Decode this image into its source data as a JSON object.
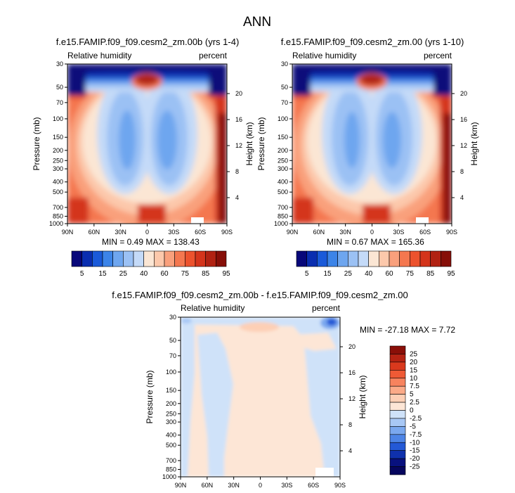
{
  "main_title": "ANN",
  "chart_data": [
    {
      "type": "heatmap",
      "title": "f.e15.FAMIP.f09_f09.cesm2_zm.00b (yrs 1-4)",
      "left_label": "Relative humidity",
      "right_label": "percent",
      "xlabel": "",
      "ylabel": "Pressure (mb)",
      "y2label": "Height (km)",
      "x_ticks": [
        "90N",
        "60N",
        "30N",
        "0",
        "30S",
        "60S",
        "90S"
      ],
      "y_ticks": [
        "30",
        "50",
        "70",
        "100",
        "150",
        "200",
        "250",
        "300",
        "400",
        "500",
        "700",
        "850",
        "1000"
      ],
      "y2_ticks": [
        "20",
        "16",
        "12",
        "8",
        "4"
      ],
      "min_max": "MIN =   0.49  MAX = 138.43",
      "colorbar": {
        "labels": [
          "5",
          "15",
          "25",
          "40",
          "60",
          "75",
          "85",
          "95"
        ],
        "colors": [
          "#08087a",
          "#0a2eb0",
          "#1a5ad9",
          "#3c84e8",
          "#6ea6ef",
          "#9bc1f4",
          "#c4daf8",
          "#fbe6d4",
          "#fcc8ab",
          "#f9a07c",
          "#f4774f",
          "#ec522d",
          "#d4341b",
          "#b12212",
          "#860f08"
        ]
      },
      "y_scale": "log"
    },
    {
      "type": "heatmap",
      "title": "f.e15.FAMIP.f09_f09.cesm2_zm.00 (yrs 1-10)",
      "left_label": "Relative humidity",
      "right_label": "percent",
      "xlabel": "",
      "ylabel": "Pressure (mb)",
      "y2label": "Height (km)",
      "x_ticks": [
        "90N",
        "60N",
        "30N",
        "0",
        "30S",
        "60S",
        "90S"
      ],
      "y_ticks": [
        "30",
        "50",
        "70",
        "100",
        "150",
        "200",
        "250",
        "300",
        "400",
        "500",
        "700",
        "850",
        "1000"
      ],
      "y2_ticks": [
        "20",
        "16",
        "12",
        "8",
        "4"
      ],
      "min_max": "MIN =   0.67  MAX = 165.36",
      "colorbar": {
        "labels": [
          "5",
          "15",
          "25",
          "40",
          "60",
          "75",
          "85",
          "95"
        ],
        "colors": [
          "#08087a",
          "#0a2eb0",
          "#1a5ad9",
          "#3c84e8",
          "#6ea6ef",
          "#9bc1f4",
          "#c4daf8",
          "#fbe6d4",
          "#fcc8ab",
          "#f9a07c",
          "#f4774f",
          "#ec522d",
          "#d4341b",
          "#b12212",
          "#860f08"
        ]
      },
      "y_scale": "log"
    },
    {
      "type": "heatmap",
      "title": "f.e15.FAMIP.f09_f09.cesm2_zm.00b - f.e15.FAMIP.f09_f09.cesm2_zm.00",
      "left_label": "Relative humidity",
      "right_label": "percent",
      "xlabel": "",
      "ylabel": "Pressure (mb)",
      "y2label": "Height (km)",
      "x_ticks": [
        "90N",
        "60N",
        "30N",
        "0",
        "30S",
        "60S",
        "90S"
      ],
      "y_ticks": [
        "30",
        "50",
        "70",
        "100",
        "150",
        "200",
        "250",
        "300",
        "400",
        "500",
        "700",
        "850",
        "1000"
      ],
      "y2_ticks": [
        "20",
        "16",
        "12",
        "8",
        "4"
      ],
      "min_max": "MIN = -27.18  MAX =   7.72",
      "colorbar": {
        "labels": [
          "25",
          "20",
          "15",
          "10",
          "7.5",
          "5",
          "2.5",
          "0",
          "-2.5",
          "-5",
          "-7.5",
          "-10",
          "-15",
          "-20",
          "-25"
        ],
        "colors": [
          "#8a0f08",
          "#b52313",
          "#d9391d",
          "#ef5a35",
          "#f7835e",
          "#fbaa88",
          "#fdcfb5",
          "#fde6d6",
          "#cfe2f9",
          "#a8c8f5",
          "#7aa8ef",
          "#4d84e6",
          "#2459d6",
          "#0f31ad",
          "#08117e",
          "#06065e"
        ]
      },
      "y_scale": "log"
    }
  ]
}
